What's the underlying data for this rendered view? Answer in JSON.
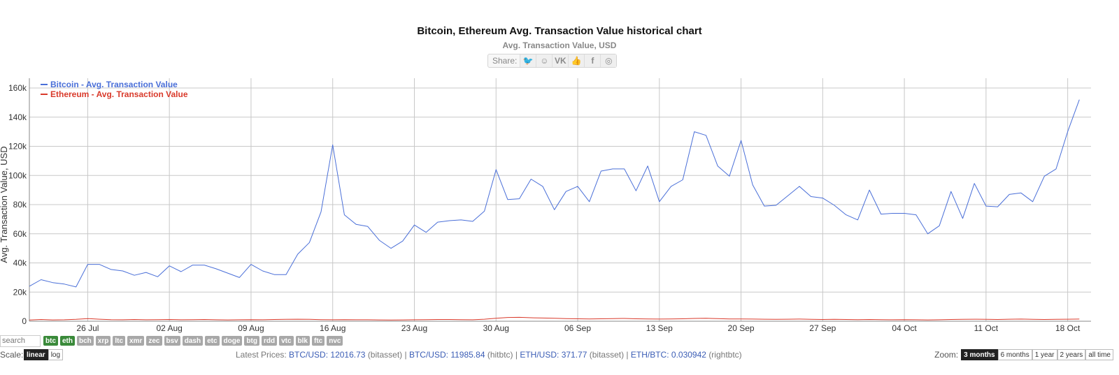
{
  "header": {
    "title": "Bitcoin, Ethereum Avg. Transaction Value historical chart",
    "subtitle": "Avg. Transaction Value, USD",
    "share_label": "Share:"
  },
  "share_icons": [
    {
      "name": "twitter-icon",
      "glyph": "🐦"
    },
    {
      "name": "reddit-icon",
      "glyph": "☺"
    },
    {
      "name": "vk-icon",
      "glyph": "VK"
    },
    {
      "name": "like-icon",
      "glyph": "👍"
    },
    {
      "name": "facebook-icon",
      "glyph": "f"
    },
    {
      "name": "weibo-icon",
      "glyph": "◎"
    }
  ],
  "colors": {
    "bitcoin": "#4a6fd8",
    "ethereum": "#d93a2b",
    "grid": "#c8c8c8",
    "active_coin": "#3a8a3a"
  },
  "chart_data": {
    "type": "line",
    "ylabel": "Avg. Transaction Value, USD",
    "ylim": [
      0,
      160000
    ],
    "yticks": [
      0,
      20000,
      40000,
      60000,
      80000,
      100000,
      120000,
      140000,
      160000
    ],
    "ytick_labels": [
      "0",
      "20k",
      "40k",
      "60k",
      "80k",
      "100k",
      "120k",
      "140k",
      "160k"
    ],
    "xlim": [
      "2020-07-21",
      "2020-10-20"
    ],
    "x_ticks": [
      {
        "date": "2020-07-26",
        "label": "26 Jul"
      },
      {
        "date": "2020-08-02",
        "label": "02 Aug"
      },
      {
        "date": "2020-08-09",
        "label": "09 Aug"
      },
      {
        "date": "2020-08-16",
        "label": "16 Aug"
      },
      {
        "date": "2020-08-23",
        "label": "23 Aug"
      },
      {
        "date": "2020-08-30",
        "label": "30 Aug"
      },
      {
        "date": "2020-09-06",
        "label": "06 Sep"
      },
      {
        "date": "2020-09-13",
        "label": "13 Sep"
      },
      {
        "date": "2020-09-20",
        "label": "20 Sep"
      },
      {
        "date": "2020-09-27",
        "label": "27 Sep"
      },
      {
        "date": "2020-10-04",
        "label": "04 Oct"
      },
      {
        "date": "2020-10-11",
        "label": "11 Oct"
      },
      {
        "date": "2020-10-18",
        "label": "18 Oct"
      }
    ],
    "grid": true,
    "legend_position": "top-left",
    "series": [
      {
        "name": "Bitcoin - Avg. Transaction Value",
        "color": "#4a6fd8",
        "start_date": "2020-07-21",
        "values": [
          24000,
          28500,
          26500,
          25500,
          23500,
          39000,
          39000,
          35500,
          34500,
          31500,
          33500,
          30500,
          38000,
          34000,
          38500,
          38500,
          36000,
          33000,
          30000,
          39000,
          34500,
          32000,
          32000,
          46000,
          54000,
          75000,
          121000,
          73000,
          66500,
          65000,
          55500,
          50000,
          55000,
          66000,
          61000,
          68000,
          69000,
          69500,
          68500,
          75500,
          104000,
          83500,
          84000,
          97500,
          92500,
          76500,
          89000,
          92500,
          82000,
          103000,
          104500,
          104500,
          89500,
          106500,
          82000,
          92500,
          97000,
          130000,
          127500,
          106500,
          99500,
          124000,
          93500,
          79000,
          79500,
          86000,
          92500,
          85500,
          84500,
          79500,
          73000,
          69500,
          90000,
          73500,
          74000,
          74000,
          73000,
          60000,
          65500,
          89000,
          70500,
          94500,
          79000,
          78500,
          87000,
          88000,
          82000,
          99500,
          104500,
          130000,
          152000
        ]
      },
      {
        "name": "Ethereum - Avg. Transaction Value",
        "color": "#d93a2b",
        "start_date": "2020-07-21",
        "values": [
          800,
          1200,
          900,
          1000,
          1300,
          1800,
          1400,
          1100,
          1000,
          1200,
          1000,
          1100,
          1200,
          1000,
          1100,
          1200,
          1000,
          900,
          1000,
          1100,
          1000,
          1200,
          1300,
          1400,
          1300,
          1100,
          1000,
          1100,
          1000,
          1000,
          900,
          800,
          900,
          1000,
          1100,
          1200,
          1200,
          1100,
          1000,
          1400,
          2000,
          2600,
          2700,
          2400,
          2200,
          2000,
          1800,
          1700,
          1600,
          1700,
          1800,
          1900,
          1700,
          1600,
          1500,
          1600,
          1700,
          1900,
          2000,
          1800,
          1600,
          1600,
          1500,
          1400,
          1300,
          1400,
          1500,
          1300,
          1200,
          1300,
          1200,
          1100,
          1200,
          1100,
          1000,
          1100,
          1000,
          900,
          1000,
          1200,
          1300,
          1400,
          1300,
          1200,
          1400,
          1500,
          1300,
          1200,
          1300,
          1400,
          1500
        ]
      }
    ]
  },
  "controls": {
    "search_placeholder": "search",
    "coins": [
      {
        "label": "btc",
        "active": true
      },
      {
        "label": "eth",
        "active": true
      },
      {
        "label": "bch",
        "active": false
      },
      {
        "label": "xrp",
        "active": false
      },
      {
        "label": "ltc",
        "active": false
      },
      {
        "label": "xmr",
        "active": false
      },
      {
        "label": "zec",
        "active": false
      },
      {
        "label": "bsv",
        "active": false
      },
      {
        "label": "dash",
        "active": false
      },
      {
        "label": "etc",
        "active": false
      },
      {
        "label": "doge",
        "active": false
      },
      {
        "label": "btg",
        "active": false
      },
      {
        "label": "rdd",
        "active": false
      },
      {
        "label": "vtc",
        "active": false
      },
      {
        "label": "blk",
        "active": false
      },
      {
        "label": "ftc",
        "active": false
      },
      {
        "label": "nvc",
        "active": false
      }
    ],
    "scale_label": "Scale:",
    "scale_options": [
      {
        "label": "linear",
        "active": true
      },
      {
        "label": "log",
        "active": false
      }
    ],
    "zoom_label": "Zoom:",
    "zoom_options": [
      {
        "label": "3 months",
        "active": true
      },
      {
        "label": "6 months",
        "active": false
      },
      {
        "label": "1 year",
        "active": false
      },
      {
        "label": "2 years",
        "active": false
      },
      {
        "label": "all time",
        "active": false
      }
    ]
  },
  "latest_prices": {
    "label": "Latest Prices:",
    "items": [
      {
        "pair": "BTC/USD:",
        "value": "12016.73",
        "source": "(bitasset)"
      },
      {
        "pair": "BTC/USD:",
        "value": "11985.84",
        "source": "(hitbtc)"
      },
      {
        "pair": "ETH/USD:",
        "value": "371.77",
        "source": "(bitasset)"
      },
      {
        "pair": "ETH/BTC:",
        "value": "0.030942",
        "source": "(rightbtc)"
      }
    ]
  }
}
